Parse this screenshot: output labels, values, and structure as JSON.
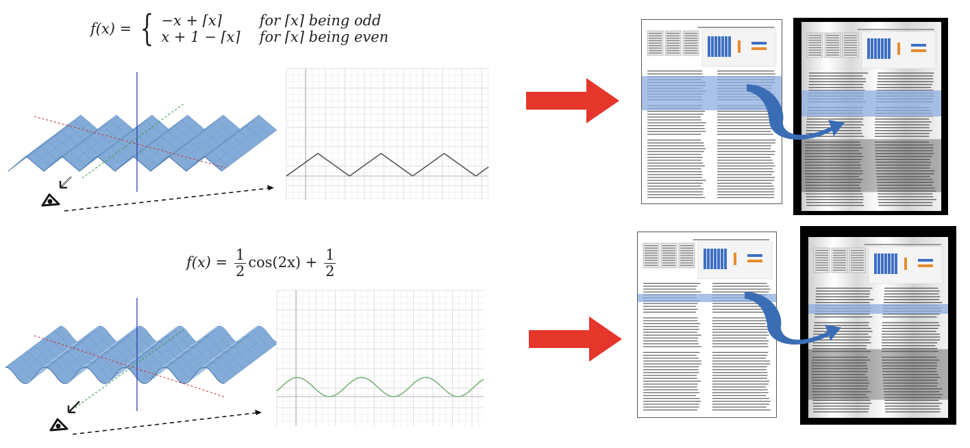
{
  "top_row": {
    "formula": {
      "lhs": "f(x) =",
      "case1_expr": "−x + ⌈x⌉",
      "case1_cond": "for ⌈x⌉ being odd",
      "case2_expr": "x + 1 − ⌈x⌉",
      "case2_cond": "for ⌈x⌉ being even"
    },
    "profile_type": "triangle"
  },
  "bottom_row": {
    "formula": {
      "lhs": "f(x) =",
      "frac1_num": "1",
      "frac1_den": "2",
      "mid": "cos(2x) +",
      "frac2_num": "1",
      "frac2_den": "2"
    },
    "profile_type": "cosine"
  },
  "colors": {
    "arrow": "#e5362b",
    "band": "#8eaee0",
    "curve_arrow": "#3b6db5",
    "surface": "#9cc0e6",
    "triangle_line": "#555555",
    "cosine_line": "#7bb07b",
    "grid": "#dcdcdc"
  },
  "icons": [
    "eye-icon",
    "view-direction-arrow-icon",
    "red-arrow-icon",
    "curved-blue-arrow-icon"
  ]
}
